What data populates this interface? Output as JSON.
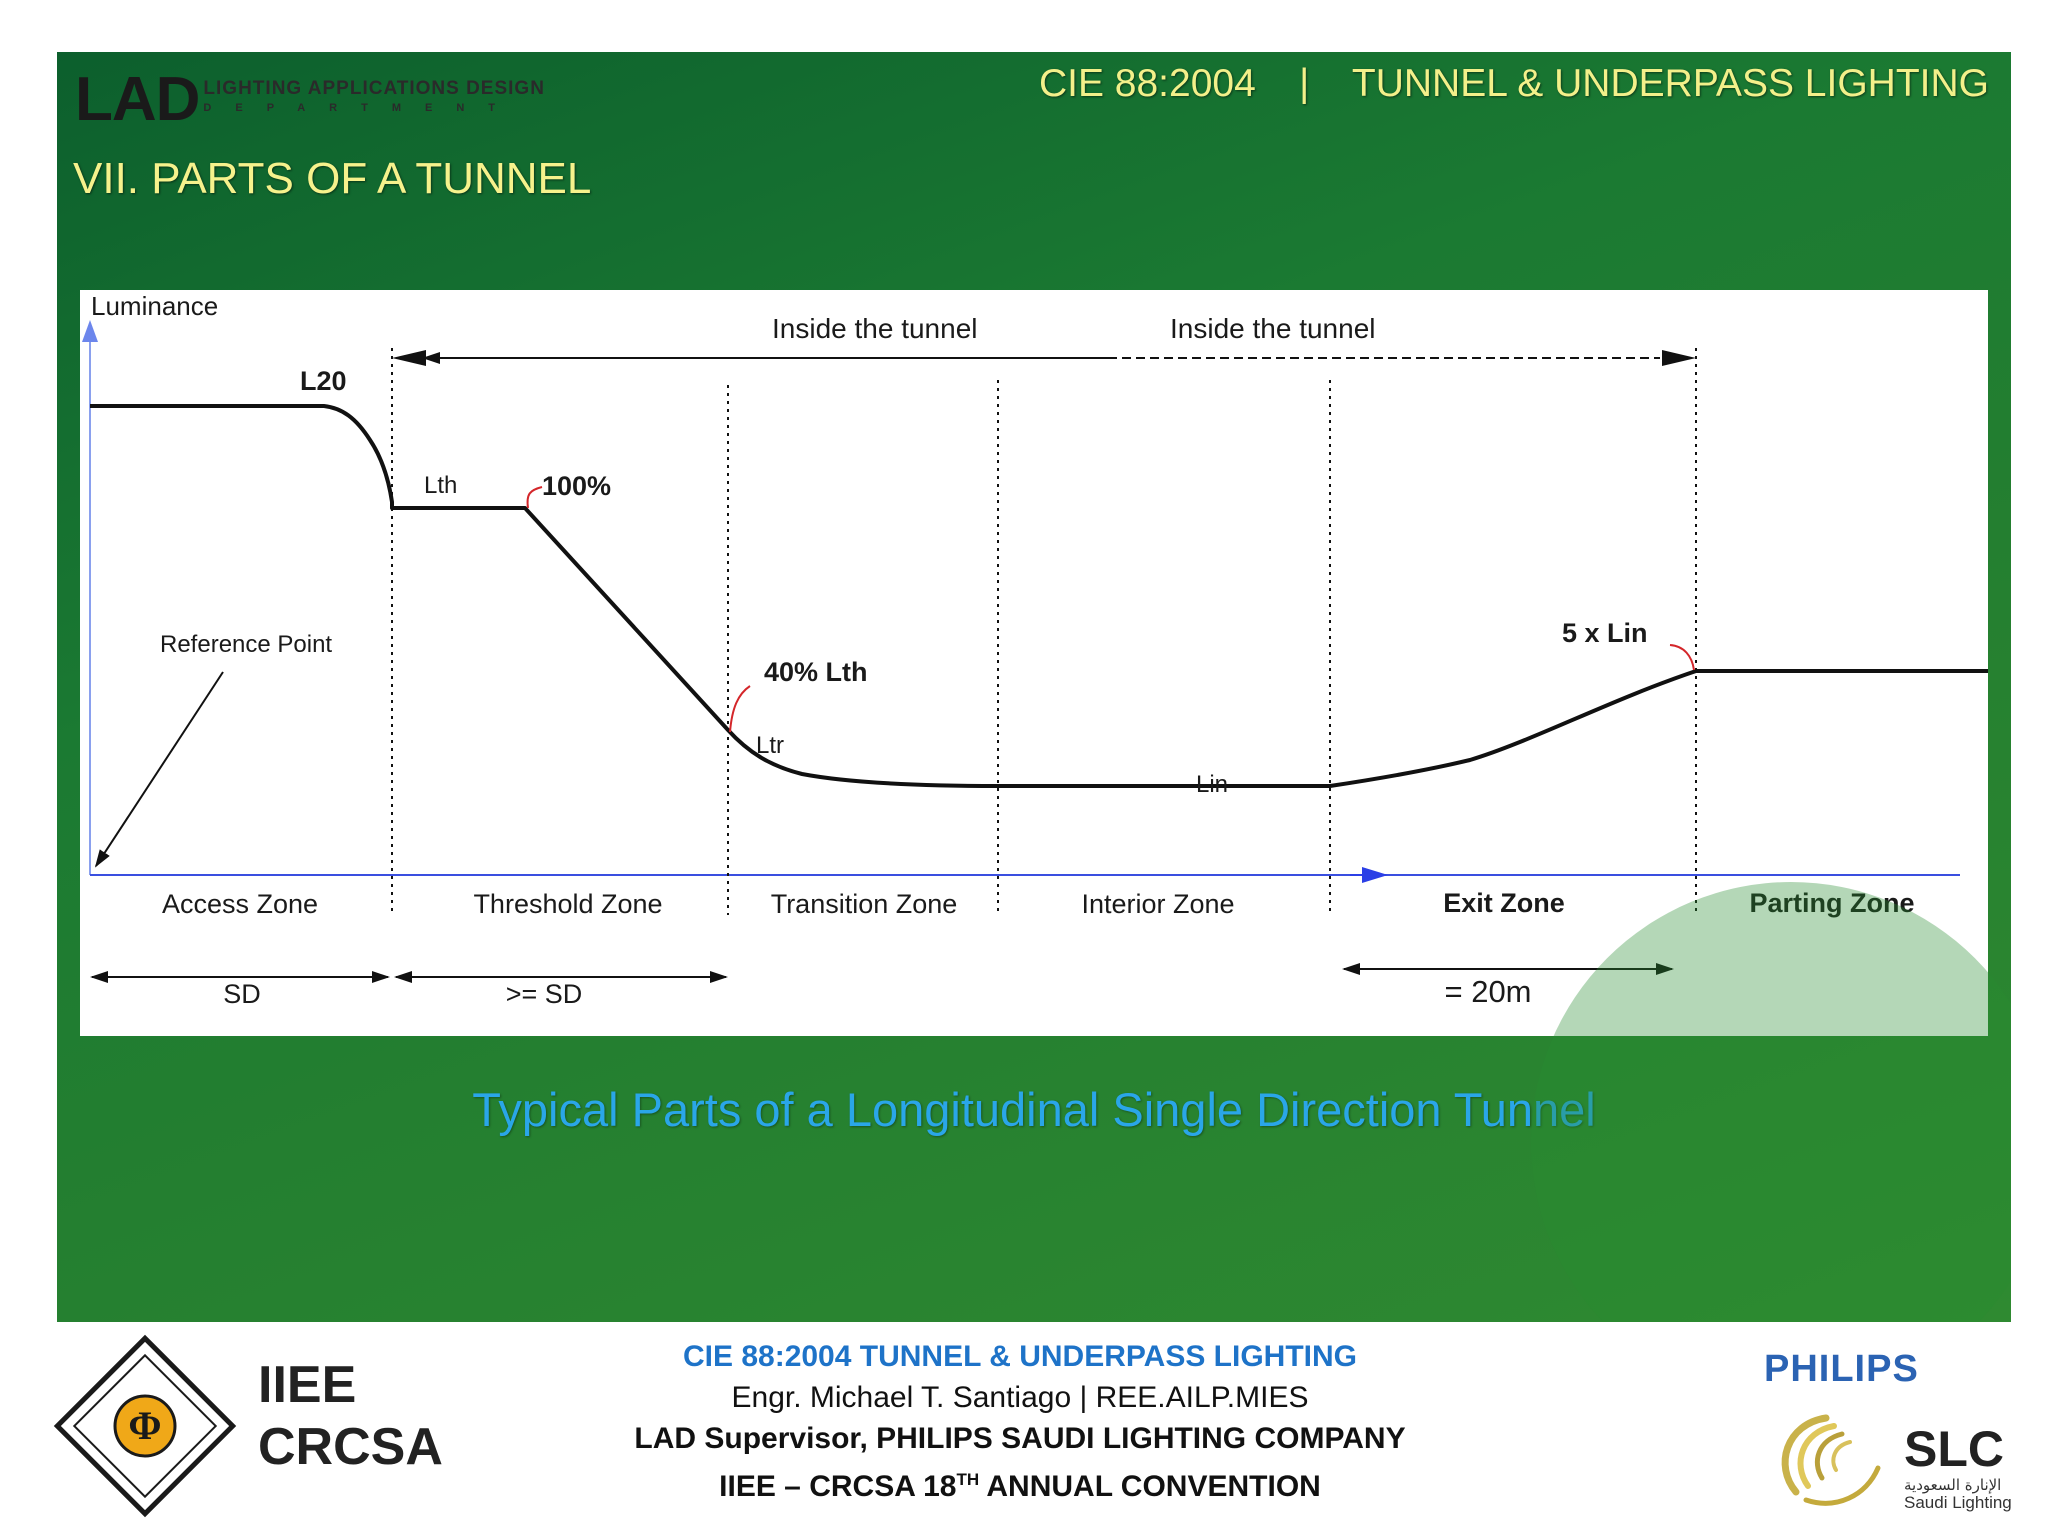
{
  "header": {
    "logo_mark": "LAD",
    "logo_line1": "LIGHTING APPLICATIONS DESIGN",
    "logo_line2": "DEPARTMENT",
    "title": "CIE 88:2004    |    TUNNEL & UNDERPASS LIGHTING"
  },
  "section_title": "VII. PARTS OF A TUNNEL",
  "diagram": {
    "y_axis_label": "Luminance",
    "inside_label_left": "Inside the tunnel",
    "inside_label_right": "Inside the tunnel",
    "labels": {
      "l20": "L20",
      "lth": "Lth",
      "pct100": "100%",
      "reference_point": "Reference Point",
      "pct40": "40% Lth",
      "ltr": "Ltr",
      "lin": "Lin",
      "five_lin": "5 x Lin"
    },
    "zones": [
      "Access Zone",
      "Threshold Zone",
      "Transition Zone",
      "Interior Zone",
      "Exit Zone",
      "Parting Zone"
    ],
    "dimensions": {
      "sd": "SD",
      "ge_sd": ">= SD",
      "twenty_m": "= 20m"
    },
    "colors": {
      "axis": "#3a4fe0",
      "curve": "#111111",
      "leader": "#d4262a"
    }
  },
  "caption": "Typical Parts of a Longitudinal Single Direction Tunnel",
  "footer": {
    "seal_icon": "iiee-seal-icon",
    "org_line1": "IIEE",
    "org_line2": "CRCSA",
    "center_title": "CIE 88:2004 TUNNEL & UNDERPASS LIGHTING",
    "center_author": "Engr. Michael T. Santiago | REE.AILP.MIES",
    "center_role": "LAD Supervisor, PHILIPS SAUDI LIGHTING COMPANY",
    "center_event": "IIEE – CRCSA 18",
    "center_event_sup": "TH",
    "center_event_end": " ANNUAL CONVENTION",
    "philips": "PHILIPS",
    "slc": "SLC",
    "slc_arabic": "الإنارة السعودية",
    "slc_sub": "Saudi Lighting"
  }
}
